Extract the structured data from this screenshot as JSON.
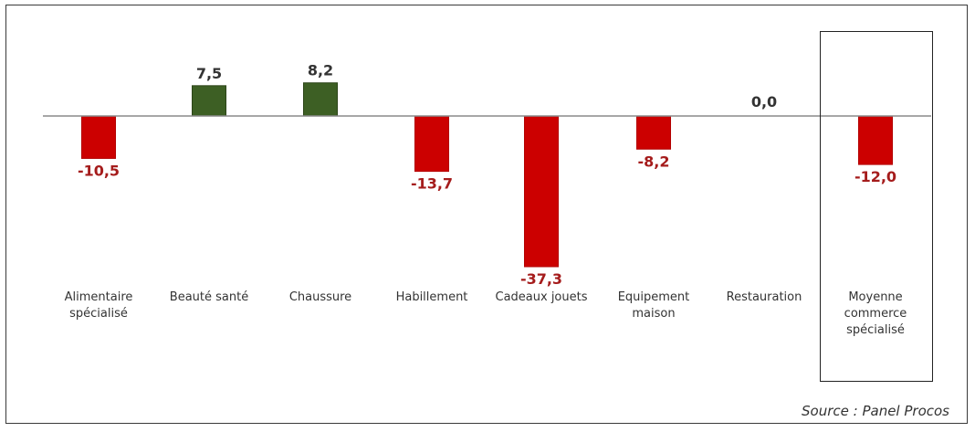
{
  "chart_data": {
    "type": "bar",
    "categories": [
      [
        "Alimentaire",
        "spécialisé"
      ],
      [
        "Beauté santé"
      ],
      [
        "Chaussure"
      ],
      [
        "Habillement"
      ],
      [
        "Cadeaux jouets"
      ],
      [
        "Equipement",
        "maison"
      ],
      [
        "Restauration"
      ],
      [
        "Moyenne",
        "commerce",
        "spécialisé"
      ]
    ],
    "values": [
      -10.5,
      7.5,
      8.2,
      -13.7,
      -37.3,
      -8.2,
      0.0,
      -12.0
    ],
    "value_labels": [
      "-10,5",
      "7,5",
      "8,2",
      "-13,7",
      "-37,3",
      "-8,2",
      "0,0",
      "-12,0"
    ],
    "highlighted_category_index": 7,
    "grid": false,
    "colors": {
      "positive": "#3d5f24",
      "negative": "#cc0000",
      "negative_label": "#a51c1c",
      "zero_label": "#333333",
      "positive_label": "#333333",
      "axis": "#8a8a8a"
    }
  },
  "source": "Source : Panel Procos"
}
